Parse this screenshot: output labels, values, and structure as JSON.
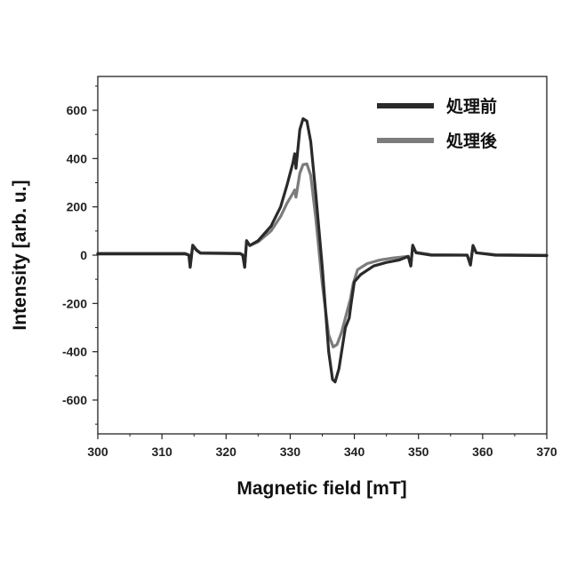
{
  "chart_data": {
    "type": "line",
    "title": "",
    "xlabel": "Magnetic field [mT]",
    "ylabel": "Intensity [arb. u.]",
    "xlim": [
      300,
      370
    ],
    "ylim": [
      -740,
      740
    ],
    "x_ticks": [
      300,
      310,
      320,
      330,
      340,
      350,
      360,
      370
    ],
    "y_ticks": [
      600,
      400,
      200,
      0,
      -200,
      -400,
      -600
    ],
    "grid": false,
    "legend_position": "top-right",
    "series": [
      {
        "name": "処理前",
        "color": "#2a2a2a",
        "points": [
          [
            300,
            5
          ],
          [
            313.6,
            5
          ],
          [
            314.2,
            0
          ],
          [
            314.4,
            -50
          ],
          [
            314.8,
            40
          ],
          [
            315.4,
            20
          ],
          [
            316,
            8
          ],
          [
            322.2,
            6
          ],
          [
            322.6,
            0
          ],
          [
            322.9,
            -50
          ],
          [
            323.2,
            60
          ],
          [
            323.7,
            40
          ],
          [
            325,
            60
          ],
          [
            327,
            120
          ],
          [
            328.5,
            200
          ],
          [
            329.5,
            290
          ],
          [
            330.4,
            380
          ],
          [
            330.7,
            420
          ],
          [
            330.9,
            360
          ],
          [
            331.5,
            520
          ],
          [
            332,
            565
          ],
          [
            332.6,
            555
          ],
          [
            333.2,
            470
          ],
          [
            334,
            250
          ],
          [
            335,
            -50
          ],
          [
            336,
            -400
          ],
          [
            336.6,
            -515
          ],
          [
            337,
            -525
          ],
          [
            337.6,
            -470
          ],
          [
            338.6,
            -300
          ],
          [
            339.2,
            -260
          ],
          [
            339.5,
            -200
          ],
          [
            340,
            -110
          ],
          [
            341,
            -80
          ],
          [
            343,
            -45
          ],
          [
            345,
            -30
          ],
          [
            347,
            -20
          ],
          [
            348.4,
            -5
          ],
          [
            348.8,
            -45
          ],
          [
            349.1,
            40
          ],
          [
            349.6,
            10
          ],
          [
            352,
            0
          ],
          [
            357.6,
            0
          ],
          [
            358.1,
            -40
          ],
          [
            358.5,
            40
          ],
          [
            359,
            10
          ],
          [
            362,
            0
          ],
          [
            370,
            -2
          ]
        ]
      },
      {
        "name": "処理後",
        "color": "#7c7c7c",
        "points": [
          [
            300,
            8
          ],
          [
            313.6,
            8
          ],
          [
            314.2,
            2
          ],
          [
            314.4,
            -50
          ],
          [
            314.8,
            42
          ],
          [
            315.4,
            22
          ],
          [
            316,
            10
          ],
          [
            322.2,
            8
          ],
          [
            322.6,
            2
          ],
          [
            322.9,
            -50
          ],
          [
            323.2,
            60
          ],
          [
            323.7,
            40
          ],
          [
            325,
            55
          ],
          [
            327,
            100
          ],
          [
            328.5,
            160
          ],
          [
            329.5,
            215
          ],
          [
            330.4,
            255
          ],
          [
            330.7,
            270
          ],
          [
            330.9,
            240
          ],
          [
            331.5,
            340
          ],
          [
            332,
            375
          ],
          [
            332.6,
            378
          ],
          [
            333.2,
            330
          ],
          [
            334,
            150
          ],
          [
            335,
            -120
          ],
          [
            336,
            -330
          ],
          [
            336.7,
            -380
          ],
          [
            337.3,
            -370
          ],
          [
            338,
            -320
          ],
          [
            338.8,
            -240
          ],
          [
            339.4,
            -180
          ],
          [
            339.8,
            -120
          ],
          [
            340.5,
            -60
          ],
          [
            342,
            -35
          ],
          [
            344,
            -20
          ],
          [
            346,
            -12
          ],
          [
            348.4,
            -5
          ],
          [
            348.8,
            -45
          ],
          [
            349.1,
            42
          ],
          [
            349.6,
            12
          ],
          [
            352,
            2
          ],
          [
            357.6,
            0
          ],
          [
            358.1,
            -42
          ],
          [
            358.5,
            38
          ],
          [
            359,
            10
          ],
          [
            362,
            2
          ],
          [
            370,
            0
          ]
        ]
      }
    ]
  }
}
